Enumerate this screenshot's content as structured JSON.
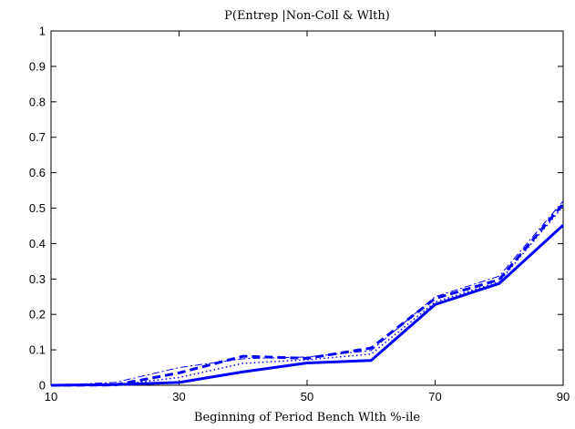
{
  "chart_data": {
    "type": "line",
    "title": "P(Entrep |Non-Coll & Wlth)",
    "xlabel": "Beginning of Period Bench Wlth %-ile",
    "ylabel": "",
    "xlim": [
      10,
      90
    ],
    "ylim": [
      0,
      1
    ],
    "xticks": [
      10,
      30,
      50,
      70,
      90
    ],
    "yticks": [
      0,
      0.1,
      0.2,
      0.3,
      0.4,
      0.5,
      0.6,
      0.7,
      0.8,
      0.9,
      1
    ],
    "xtick_labels": [
      "10",
      "30",
      "50",
      "70",
      "90"
    ],
    "ytick_labels": [
      "0",
      "0.1",
      "0.2",
      "0.3",
      "0.4",
      "0.5",
      "0.6",
      "0.7",
      "0.8",
      "0.9",
      "1"
    ],
    "grid": false,
    "legend": "none",
    "x": [
      10,
      20,
      30,
      40,
      50,
      60,
      70,
      80,
      90
    ],
    "series": [
      {
        "values": [
          0,
          0.002,
          0.008,
          0.038,
          0.063,
          0.07,
          0.228,
          0.287,
          0.452
        ],
        "style": "solid",
        "width": 3,
        "color": "#0000ff"
      },
      {
        "values": [
          0,
          0.001,
          0.035,
          0.082,
          0.076,
          0.105,
          0.245,
          0.298,
          0.512
        ],
        "style": "dashed",
        "width": 3,
        "color": "#0000ff"
      },
      {
        "values": [
          0,
          0.008,
          0.05,
          0.075,
          0.08,
          0.098,
          0.25,
          0.308,
          0.52
        ],
        "style": "dashdot",
        "width": 1,
        "color": "#0000ff"
      },
      {
        "values": [
          0,
          0.001,
          0.022,
          0.062,
          0.072,
          0.088,
          0.235,
          0.292,
          0.505
        ],
        "style": "dotted",
        "width": 1.5,
        "color": "#0000ff"
      }
    ]
  }
}
